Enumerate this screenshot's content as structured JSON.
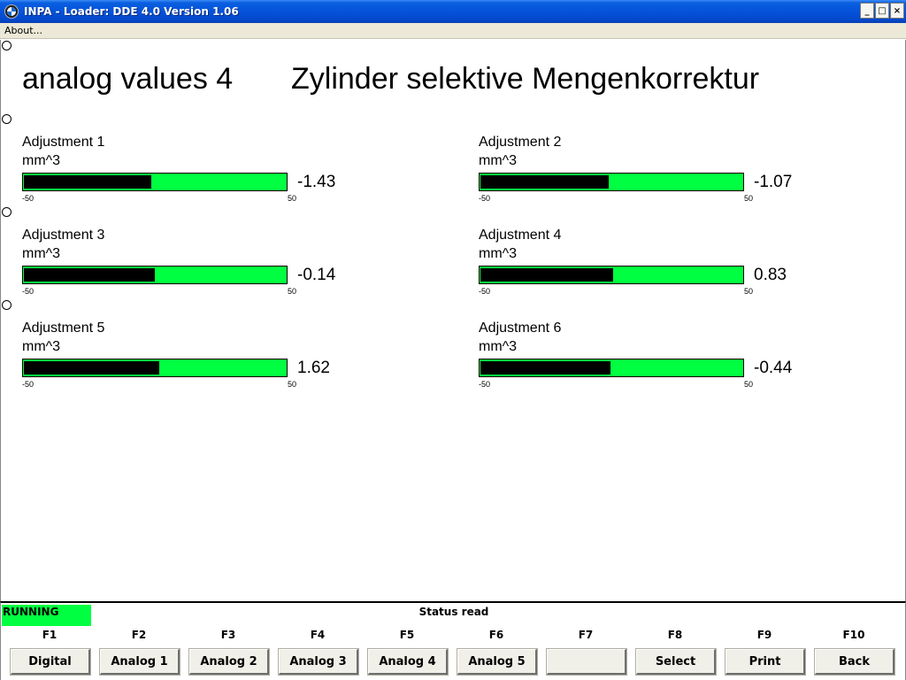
{
  "window": {
    "title": "INPA - Loader:  DDE 4.0 Version 1.06",
    "icon": "bmw-logo-icon"
  },
  "menu": {
    "about": "About..."
  },
  "header": {
    "left": "analog values 4",
    "right": "Zylinder selektive Mengenkorrektur"
  },
  "gauges": [
    {
      "label": "Adjustment 1",
      "unit": "mm^3",
      "value_text": "-1.43",
      "value": -1.43,
      "min": "-50",
      "max": "50"
    },
    {
      "label": "Adjustment 2",
      "unit": "mm^3",
      "value_text": "-1.07",
      "value": -1.07,
      "min": "-50",
      "max": "50"
    },
    {
      "label": "Adjustment 3",
      "unit": "mm^3",
      "value_text": "-0.14",
      "value": -0.14,
      "min": "-50",
      "max": "50"
    },
    {
      "label": "Adjustment 4",
      "unit": "mm^3",
      "value_text": "0.83",
      "value": 0.83,
      "min": "-50",
      "max": "50"
    },
    {
      "label": "Adjustment 5",
      "unit": "mm^3",
      "value_text": "1.62",
      "value": 1.62,
      "min": "-50",
      "max": "50"
    },
    {
      "label": "Adjustment 6",
      "unit": "mm^3",
      "value_text": "-0.44",
      "value": -0.44,
      "min": "-50",
      "max": "50"
    }
  ],
  "colors": {
    "bar_bg": "#00ff40",
    "bar_fill": "#000000",
    "running_bg": "#00ff40"
  },
  "status": {
    "state": "RUNNING",
    "text": "Status read"
  },
  "fkeys": [
    {
      "key": "F1",
      "label": "Digital"
    },
    {
      "key": "F2",
      "label": "Analog 1"
    },
    {
      "key": "F3",
      "label": "Analog 2"
    },
    {
      "key": "F4",
      "label": "Analog 3"
    },
    {
      "key": "F5",
      "label": "Analog 4"
    },
    {
      "key": "F6",
      "label": "Analog 5"
    },
    {
      "key": "F7",
      "label": ""
    },
    {
      "key": "F8",
      "label": "Select"
    },
    {
      "key": "F9",
      "label": "Print"
    },
    {
      "key": "F10",
      "label": "Back"
    }
  ]
}
